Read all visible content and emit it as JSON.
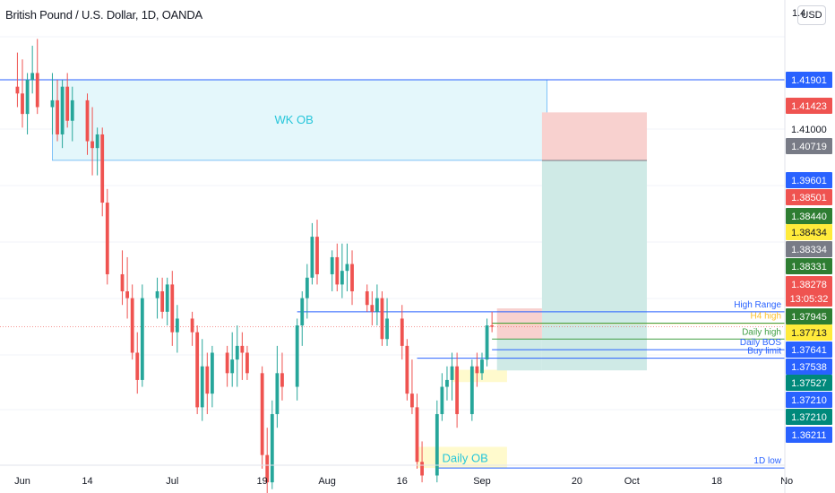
{
  "header": {
    "title": "British Pound / U.S. Dollar, 1D, OANDA",
    "currency": "USD"
  },
  "colors": {
    "up": "#26a69a",
    "down": "#ef5350",
    "wk_ob_fill": "#e4f7fb",
    "wk_ob_border": "#64b5f6",
    "blue_line": "#2962ff",
    "green_line": "#43a047",
    "yellow_line": "#fbc02d",
    "stop_zone": "#f8d1cf",
    "target_zone": "#cfeae6"
  },
  "chart_data": {
    "type": "candlestick",
    "symbol": "British Pound / U.S. Dollar",
    "interval": "1D",
    "source": "OANDA",
    "x_axis_ticks": [
      "Jun",
      "14",
      "Jul",
      "19",
      "Aug",
      "16",
      "Sep",
      "20",
      "Oct",
      "18",
      "No"
    ],
    "y_axis_ticks": [
      "1.4",
      "1.41000"
    ],
    "ylim": [
      1.355,
      1.43
    ],
    "candles": [
      {
        "d": "2021-05-31",
        "o": 1.418,
        "h": 1.423,
        "l": 1.415,
        "c": 1.417
      },
      {
        "d": "2021-06-01",
        "o": 1.417,
        "h": 1.422,
        "l": 1.412,
        "c": 1.414
      },
      {
        "d": "2021-06-02",
        "o": 1.414,
        "h": 1.42,
        "l": 1.411,
        "c": 1.419
      },
      {
        "d": "2021-06-03",
        "o": 1.419,
        "h": 1.424,
        "l": 1.417,
        "c": 1.42
      },
      {
        "d": "2021-06-04",
        "o": 1.42,
        "h": 1.425,
        "l": 1.414,
        "c": 1.415
      },
      {
        "d": "2021-06-07",
        "o": 1.415,
        "h": 1.42,
        "l": 1.411,
        "c": 1.416
      },
      {
        "d": "2021-06-08",
        "o": 1.416,
        "h": 1.419,
        "l": 1.41,
        "c": 1.411
      },
      {
        "d": "2021-06-09",
        "o": 1.411,
        "h": 1.419,
        "l": 1.409,
        "c": 1.418
      },
      {
        "d": "2021-06-10",
        "o": 1.418,
        "h": 1.42,
        "l": 1.412,
        "c": 1.413
      },
      {
        "d": "2021-06-11",
        "o": 1.413,
        "h": 1.418,
        "l": 1.41,
        "c": 1.416
      },
      {
        "d": "2021-06-14",
        "o": 1.416,
        "h": 1.417,
        "l": 1.408,
        "c": 1.41
      },
      {
        "d": "2021-06-15",
        "o": 1.41,
        "h": 1.415,
        "l": 1.405,
        "c": 1.409
      },
      {
        "d": "2021-06-16",
        "o": 1.409,
        "h": 1.412,
        "l": 1.405,
        "c": 1.411
      },
      {
        "d": "2021-06-17",
        "o": 1.411,
        "h": 1.412,
        "l": 1.399,
        "c": 1.401
      },
      {
        "d": "2021-06-18",
        "o": 1.401,
        "h": 1.403,
        "l": 1.389,
        "c": 1.3905
      },
      {
        "d": "2021-06-21",
        "o": 1.3905,
        "h": 1.394,
        "l": 1.386,
        "c": 1.388
      },
      {
        "d": "2021-06-22",
        "o": 1.388,
        "h": 1.393,
        "l": 1.384,
        "c": 1.387
      },
      {
        "d": "2021-06-23",
        "o": 1.387,
        "h": 1.389,
        "l": 1.378,
        "c": 1.379
      },
      {
        "d": "2021-06-24",
        "o": 1.379,
        "h": 1.382,
        "l": 1.373,
        "c": 1.375
      },
      {
        "d": "2021-06-25",
        "o": 1.375,
        "h": 1.389,
        "l": 1.374,
        "c": 1.387
      },
      {
        "d": "2021-06-28",
        "o": 1.387,
        "h": 1.39,
        "l": 1.384,
        "c": 1.388
      },
      {
        "d": "2021-06-29",
        "o": 1.388,
        "h": 1.39,
        "l": 1.384,
        "c": 1.385
      },
      {
        "d": "2021-06-30",
        "o": 1.385,
        "h": 1.39,
        "l": 1.383,
        "c": 1.389
      },
      {
        "d": "2021-07-01",
        "o": 1.389,
        "h": 1.391,
        "l": 1.38,
        "c": 1.382
      },
      {
        "d": "2021-07-02",
        "o": 1.382,
        "h": 1.386,
        "l": 1.379,
        "c": 1.384
      },
      {
        "d": "2021-07-05",
        "o": 1.384,
        "h": 1.385,
        "l": 1.38,
        "c": 1.382
      },
      {
        "d": "2021-07-06",
        "o": 1.382,
        "h": 1.383,
        "l": 1.37,
        "c": 1.371
      },
      {
        "d": "2021-07-07",
        "o": 1.371,
        "h": 1.381,
        "l": 1.369,
        "c": 1.377
      },
      {
        "d": "2021-07-08",
        "o": 1.377,
        "h": 1.379,
        "l": 1.37,
        "c": 1.373
      },
      {
        "d": "2021-07-09",
        "o": 1.373,
        "h": 1.38,
        "l": 1.371,
        "c": 1.379
      },
      {
        "d": "2021-07-12",
        "o": 1.379,
        "h": 1.38,
        "l": 1.374,
        "c": 1.376
      },
      {
        "d": "2021-07-13",
        "o": 1.376,
        "h": 1.382,
        "l": 1.374,
        "c": 1.378
      },
      {
        "d": "2021-07-14",
        "o": 1.378,
        "h": 1.383,
        "l": 1.374,
        "c": 1.38
      },
      {
        "d": "2021-07-15",
        "o": 1.38,
        "h": 1.382,
        "l": 1.375,
        "c": 1.379
      },
      {
        "d": "2021-07-16",
        "o": 1.379,
        "h": 1.38,
        "l": 1.375,
        "c": 1.376
      },
      {
        "d": "2021-07-19",
        "o": 1.376,
        "h": 1.377,
        "l": 1.362,
        "c": 1.364
      },
      {
        "d": "2021-07-20",
        "o": 1.364,
        "h": 1.368,
        "l": 1.356,
        "c": 1.36
      },
      {
        "d": "2021-07-21",
        "o": 1.36,
        "h": 1.372,
        "l": 1.359,
        "c": 1.37
      },
      {
        "d": "2021-07-22",
        "o": 1.37,
        "h": 1.38,
        "l": 1.368,
        "c": 1.376
      },
      {
        "d": "2021-07-23",
        "o": 1.376,
        "h": 1.379,
        "l": 1.372,
        "c": 1.374
      },
      {
        "d": "2021-07-26",
        "o": 1.374,
        "h": 1.384,
        "l": 1.372,
        "c": 1.383
      },
      {
        "d": "2021-07-27",
        "o": 1.383,
        "h": 1.388,
        "l": 1.38,
        "c": 1.387
      },
      {
        "d": "2021-07-28",
        "o": 1.387,
        "h": 1.392,
        "l": 1.384,
        "c": 1.39
      },
      {
        "d": "2021-07-29",
        "o": 1.39,
        "h": 1.398,
        "l": 1.389,
        "c": 1.396
      },
      {
        "d": "2021-07-30",
        "o": 1.396,
        "h": 1.3985,
        "l": 1.389,
        "c": 1.3905
      },
      {
        "d": "2021-08-02",
        "o": 1.3905,
        "h": 1.394,
        "l": 1.388,
        "c": 1.393
      },
      {
        "d": "2021-08-03",
        "o": 1.393,
        "h": 1.395,
        "l": 1.388,
        "c": 1.389
      },
      {
        "d": "2021-08-04",
        "o": 1.389,
        "h": 1.395,
        "l": 1.387,
        "c": 1.391
      },
      {
        "d": "2021-08-05",
        "o": 1.391,
        "h": 1.395,
        "l": 1.388,
        "c": 1.392
      },
      {
        "d": "2021-08-06",
        "o": 1.392,
        "h": 1.394,
        "l": 1.386,
        "c": 1.388
      },
      {
        "d": "2021-08-09",
        "o": 1.388,
        "h": 1.389,
        "l": 1.385,
        "c": 1.386
      },
      {
        "d": "2021-08-10",
        "o": 1.386,
        "h": 1.388,
        "l": 1.383,
        "c": 1.385
      },
      {
        "d": "2021-08-11",
        "o": 1.385,
        "h": 1.389,
        "l": 1.383,
        "c": 1.387
      },
      {
        "d": "2021-08-12",
        "o": 1.387,
        "h": 1.388,
        "l": 1.38,
        "c": 1.381
      },
      {
        "d": "2021-08-13",
        "o": 1.381,
        "h": 1.387,
        "l": 1.38,
        "c": 1.384
      },
      {
        "d": "2021-08-16",
        "o": 1.384,
        "h": 1.386,
        "l": 1.378,
        "c": 1.38
      },
      {
        "d": "2021-08-17",
        "o": 1.38,
        "h": 1.381,
        "l": 1.372,
        "c": 1.373
      },
      {
        "d": "2021-08-18",
        "o": 1.373,
        "h": 1.378,
        "l": 1.37,
        "c": 1.371
      },
      {
        "d": "2021-08-19",
        "o": 1.371,
        "h": 1.373,
        "l": 1.362,
        "c": 1.363
      },
      {
        "d": "2021-08-20",
        "o": 1.363,
        "h": 1.366,
        "l": 1.36,
        "c": 1.361
      },
      {
        "d": "2021-08-23",
        "o": 1.361,
        "h": 1.372,
        "l": 1.36,
        "c": 1.37
      },
      {
        "d": "2021-08-24",
        "o": 1.37,
        "h": 1.376,
        "l": 1.369,
        "c": 1.374
      },
      {
        "d": "2021-08-25",
        "o": 1.374,
        "h": 1.377,
        "l": 1.372,
        "c": 1.375
      },
      {
        "d": "2021-08-26",
        "o": 1.375,
        "h": 1.379,
        "l": 1.372,
        "c": 1.377
      },
      {
        "d": "2021-08-27",
        "o": 1.377,
        "h": 1.379,
        "l": 1.368,
        "c": 1.37
      },
      {
        "d": "2021-08-30",
        "o": 1.37,
        "h": 1.378,
        "l": 1.369,
        "c": 1.377
      },
      {
        "d": "2021-08-31",
        "o": 1.377,
        "h": 1.379,
        "l": 1.374,
        "c": 1.376
      },
      {
        "d": "2021-09-01",
        "o": 1.376,
        "h": 1.379,
        "l": 1.375,
        "c": 1.378
      },
      {
        "d": "2021-09-02",
        "o": 1.378,
        "h": 1.384,
        "l": 1.377,
        "c": 1.383
      },
      {
        "d": "2021-09-03",
        "o": 1.383,
        "h": 1.385,
        "l": 1.382,
        "c": 1.3828
      }
    ],
    "zones": [
      {
        "label": "WK OB",
        "from_date": "2021-06-07",
        "to_date": "2021-09-14",
        "top": 1.419,
        "bottom": 1.4072
      },
      {
        "label": "Daily OB",
        "from_date": "2021-08-19",
        "to_date": "2021-09-06",
        "top": 1.3652,
        "bottom": 1.3621
      },
      {
        "label": "",
        "from_date": "2021-08-26",
        "to_date": "2021-09-06",
        "top": 1.3765,
        "bottom": 1.3747
      }
    ],
    "position": {
      "entry": 1.40719,
      "stop": 1.41423,
      "target": 1.37641,
      "from_date": "2021-09-13",
      "to_date": "2021-10-04"
    },
    "levels": [
      {
        "label": "High Range",
        "price": 1.385,
        "from_date": "2021-07-26",
        "color": "#2962ff"
      },
      {
        "label": "H4 high",
        "price": 1.38331,
        "from_date": "2021-09-03",
        "color": "#fbc02d"
      },
      {
        "label": "Daily high",
        "price": 1.381,
        "from_date": "2021-09-03",
        "color": "#43a047"
      },
      {
        "label": "Daily BOS",
        "price": 1.37945,
        "from_date": "2021-09-03",
        "color": "#2962ff"
      },
      {
        "label": "Buy limit",
        "price": 1.3782,
        "from_date": "2021-08-19",
        "color": "#2962ff"
      },
      {
        "label": "1D low",
        "price": 1.3621,
        "from_date": "2021-08-23",
        "color": "#2962ff"
      }
    ],
    "price_labels": [
      {
        "text": "1.41901",
        "bg": "#2962ff",
        "fg": "#ffffff"
      },
      {
        "text": "1.41423",
        "bg": "#ef5350",
        "fg": "#ffffff"
      },
      {
        "text": "1.41000",
        "bg": "#ffffff",
        "fg": "#131722"
      },
      {
        "text": "1.40719",
        "bg": "#787b86",
        "fg": "#ffffff"
      },
      {
        "text": "1.39601",
        "bg": "#2962ff",
        "fg": "#ffffff"
      },
      {
        "text": "1.38501",
        "bg": "#ef5350",
        "fg": "#ffffff"
      },
      {
        "text": "1.38440",
        "bg": "#2e7d32",
        "fg": "#ffffff"
      },
      {
        "text": "1.38434",
        "bg": "#ffeb3b",
        "fg": "#131722"
      },
      {
        "text": "1.38334",
        "bg": "#787b86",
        "fg": "#ffffff"
      },
      {
        "text": "1.38331",
        "bg": "#2e7d32",
        "fg": "#ffffff"
      },
      {
        "text": "1.38278",
        "bg": "#ef5350",
        "fg": "#ffffff"
      },
      {
        "text": "13:05:32",
        "bg": "#ef5350",
        "fg": "#ffffff"
      },
      {
        "text": "1.37945",
        "bg": "#2e7d32",
        "fg": "#ffffff"
      },
      {
        "text": "1.37713",
        "bg": "#ffeb3b",
        "fg": "#131722"
      },
      {
        "text": "1.37641",
        "bg": "#2962ff",
        "fg": "#ffffff"
      },
      {
        "text": "1.37538",
        "bg": "#2962ff",
        "fg": "#ffffff"
      },
      {
        "text": "1.37527",
        "bg": "#00897b",
        "fg": "#ffffff"
      },
      {
        "text": "1.37210",
        "bg": "#2962ff",
        "fg": "#ffffff"
      },
      {
        "text": "1.37210",
        "bg": "#00897b",
        "fg": "#ffffff"
      },
      {
        "text": "1.36211",
        "bg": "#2962ff",
        "fg": "#ffffff"
      }
    ],
    "current_price": 1.38278,
    "grid": true
  }
}
